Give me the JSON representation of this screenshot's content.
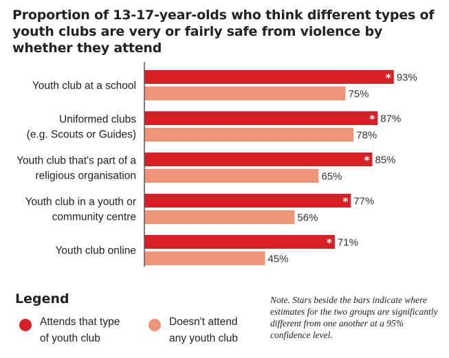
{
  "title": "Proportion of 13-17-year-olds who think different types of youth clubs are very or fairly safe from violence by whether they attend",
  "colors": {
    "attends": "#d71f26",
    "not_attend": "#ec9577",
    "axis": "#555555"
  },
  "chart_data": {
    "type": "bar",
    "orientation": "horizontal",
    "categories": [
      "Youth club at a school",
      "Uniformed clubs\n(e.g. Scouts or Guides)",
      "Youth club that's part of a\nreligious organisation",
      "Youth club in a youth or\ncommunity centre",
      "Youth club online"
    ],
    "series": [
      {
        "name": "Attends that type of youth club",
        "values": [
          93,
          87,
          85,
          77,
          71
        ],
        "labels": [
          "93%",
          "87%",
          "85%",
          "77%",
          "71%"
        ],
        "significant": [
          true,
          true,
          true,
          true,
          true
        ]
      },
      {
        "name": "Doesn't attend any youth club",
        "values": [
          75,
          78,
          65,
          56,
          45
        ],
        "labels": [
          "75%",
          "78%",
          "65%",
          "56%",
          "45%"
        ]
      }
    ],
    "star_symbol": "*",
    "xlim": [
      0,
      100
    ],
    "grid": false,
    "legend_position": "bottom"
  },
  "legend": {
    "title": "Legend",
    "attends_label": "Attends that type\nof youth club",
    "not_attend_label": "Doesn't attend\nany youth club"
  },
  "note": "Note. Stars beside the bars indicate where estimates for the two groups are significantly different from one another at a 95% confidence level."
}
